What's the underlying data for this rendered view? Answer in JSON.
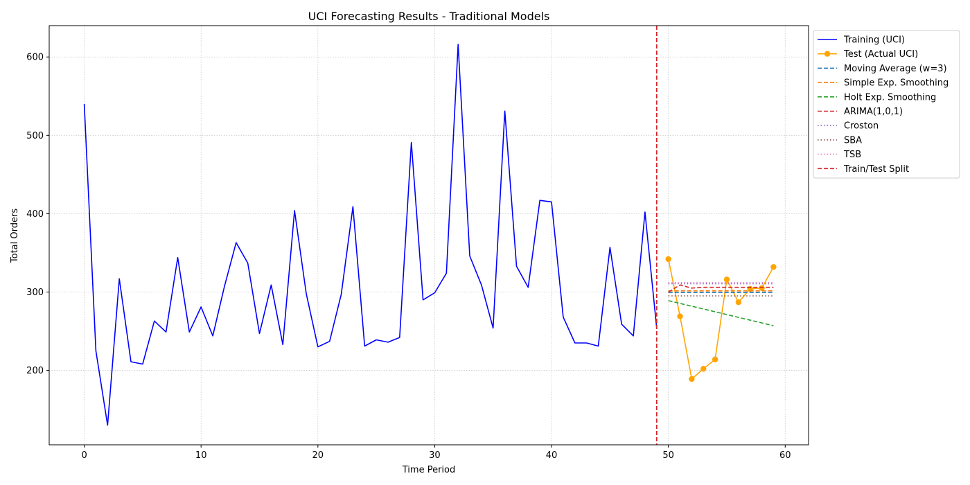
{
  "chart_data": {
    "type": "line",
    "title": "UCI Forecasting Results - Traditional Models",
    "xlabel": "Time Period",
    "ylabel": "Total Orders",
    "xlim": [
      -3,
      62
    ],
    "ylim": [
      105,
      640
    ],
    "xticks": [
      0,
      10,
      20,
      30,
      40,
      50,
      60
    ],
    "yticks": [
      200,
      300,
      400,
      500,
      600
    ],
    "grid": true,
    "legend_position": "outside-top-right",
    "split": {
      "name": "Train/Test Split",
      "x": 49,
      "color": "#d62728"
    },
    "series": [
      {
        "name": "Training (UCI)",
        "color": "#0000ff",
        "style": "solid",
        "marker": false,
        "x": [
          0,
          1,
          2,
          3,
          4,
          5,
          6,
          7,
          8,
          9,
          10,
          11,
          12,
          13,
          14,
          15,
          16,
          17,
          18,
          19,
          20,
          21,
          22,
          23,
          24,
          25,
          26,
          27,
          28,
          29,
          30,
          31,
          32,
          33,
          34,
          35,
          36,
          37,
          38,
          39,
          40,
          41,
          42,
          43,
          44,
          45,
          46,
          47,
          48,
          49
        ],
        "values": [
          540,
          225,
          130,
          317,
          211,
          208,
          263,
          249,
          344,
          249,
          281,
          244,
          307,
          363,
          337,
          247,
          309,
          233,
          404,
          298,
          230,
          237,
          297,
          409,
          231,
          239,
          236,
          242,
          491,
          290,
          299,
          324,
          616,
          346,
          309,
          254,
          531,
          333,
          306,
          417,
          415,
          268,
          235,
          235,
          231,
          357,
          259,
          244,
          402,
          254
        ]
      },
      {
        "name": "Test (Actual UCI)",
        "color": "#ffa500",
        "style": "solid",
        "marker": true,
        "x": [
          50,
          51,
          52,
          53,
          54,
          55,
          56,
          57,
          58,
          59
        ],
        "values": [
          342,
          269,
          189,
          202,
          214,
          316,
          287,
          304,
          305,
          332
        ]
      },
      {
        "name": "Moving Average (w=3)",
        "color": "#1f77b4",
        "style": "dashed",
        "marker": false,
        "x": [
          50,
          59
        ],
        "values": [
          299.5,
          299.5
        ]
      },
      {
        "name": "Simple Exp. Smoothing",
        "color": "#ff7f0e",
        "style": "dashed",
        "marker": false,
        "x": [
          50,
          59
        ],
        "values": [
          301.5,
          301.5
        ]
      },
      {
        "name": "Holt Exp. Smoothing",
        "color": "#2ca02c",
        "style": "dashed",
        "marker": false,
        "x": [
          50,
          59
        ],
        "values": [
          289,
          257
        ]
      },
      {
        "name": "ARIMA(1,0,1)",
        "color": "#d62728",
        "style": "dashed",
        "marker": false,
        "x": [
          50,
          51,
          52,
          53,
          54,
          55,
          56,
          57,
          58,
          59
        ],
        "values": [
          300,
          309,
          305,
          306,
          306,
          306,
          306,
          306,
          306,
          306
        ]
      },
      {
        "name": "Croston",
        "color": "#9467bd",
        "style": "dotted",
        "marker": false,
        "x": [
          50,
          59
        ],
        "values": [
          310.5,
          310.5
        ]
      },
      {
        "name": "SBA",
        "color": "#8c564b",
        "style": "dotted",
        "marker": false,
        "x": [
          50,
          59
        ],
        "values": [
          295,
          295
        ]
      },
      {
        "name": "TSB",
        "color": "#e377c2",
        "style": "dotted",
        "marker": false,
        "x": [
          50,
          59
        ],
        "values": [
          312,
          312
        ]
      }
    ]
  }
}
